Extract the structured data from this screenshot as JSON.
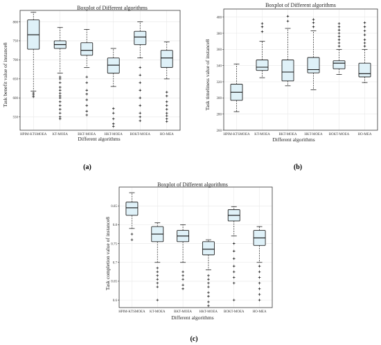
{
  "colors": {
    "box_fill": "#dff1f8",
    "median": "#111111",
    "outlier": "#222222",
    "grid": "#e6e6e6"
  },
  "chart_data": [
    {
      "type": "boxplot",
      "panel_label": "(a)",
      "title": "Boxplot of Different algorithms",
      "xlabel": "Different algorithms",
      "ylabel": "Task benefit value of instance8",
      "ylim": [
        515,
        830
      ],
      "yticks": [
        550,
        600,
        650,
        700,
        750,
        800
      ],
      "grid": true,
      "categories": [
        "HPIM-KTSMOEA",
        "KT-MOEA",
        "BKT-MOEA",
        "HKT-MOEA",
        "BOKT-MOEA",
        "HO-MEA"
      ],
      "boxes": [
        {
          "whisker_low": 618,
          "q1": 728,
          "median": 766,
          "q3": 805,
          "whisker_high": 825,
          "outliers": [
            603,
            608,
            613
          ]
        },
        {
          "whisker_low": 665,
          "q1": 730,
          "median": 740,
          "q3": 750,
          "whisker_high": 785,
          "outliers": [
            545,
            550,
            560,
            570,
            580,
            590,
            600,
            605,
            612,
            620,
            628,
            640,
            650,
            655
          ]
        },
        {
          "whisker_low": 680,
          "q1": 712,
          "median": 725,
          "q3": 745,
          "whisker_high": 780,
          "outliers": [
            555,
            565,
            580,
            595,
            610,
            620,
            640,
            655
          ]
        },
        {
          "whisker_low": 630,
          "q1": 665,
          "median": 686,
          "q3": 705,
          "whisker_high": 730,
          "outliers": [
            525,
            532,
            545,
            560,
            572
          ]
        },
        {
          "whisker_low": 705,
          "q1": 740,
          "median": 760,
          "q3": 775,
          "whisker_high": 800,
          "outliers": [
            540,
            550,
            560,
            580,
            600,
            620,
            640,
            660,
            680
          ]
        },
        {
          "whisker_low": 650,
          "q1": 680,
          "median": 705,
          "q3": 725,
          "whisker_high": 747,
          "outliers": [
            538,
            545,
            553,
            560,
            570,
            580,
            590,
            605,
            615
          ]
        }
      ]
    },
    {
      "type": "boxplot",
      "panel_label": "(b)",
      "title": "Boxplot of Different algorithms",
      "xlabel": "Different algorithms",
      "ylabel": "Task timeliness value of instance8",
      "ylim": [
        260,
        410
      ],
      "yticks": [
        260,
        280,
        300,
        320,
        340,
        360,
        380,
        400
      ],
      "grid": true,
      "categories": [
        "HPIM-KTSMOEA",
        "KT-MOEA",
        "BKT-MOEA",
        "HKT-MOEA",
        "BOKT-MOEA",
        "HO-MEA"
      ],
      "boxes": [
        {
          "whisker_low": 283,
          "q1": 297,
          "median": 307,
          "q3": 317,
          "whisker_high": 342,
          "outliers": []
        },
        {
          "whisker_low": 325,
          "q1": 334,
          "median": 338,
          "q3": 347,
          "whisker_high": 370,
          "outliers": [
            382,
            388,
            392
          ]
        },
        {
          "whisker_low": 315,
          "q1": 321,
          "median": 332,
          "q3": 347,
          "whisker_high": 386,
          "outliers": [
            395,
            401
          ]
        },
        {
          "whisker_low": 310,
          "q1": 331,
          "median": 335,
          "q3": 350,
          "whisker_high": 383,
          "outliers": [
            388,
            393,
            397
          ]
        },
        {
          "whisker_low": 329,
          "q1": 336,
          "median": 343,
          "q3": 346,
          "whisker_high": 360,
          "outliers": [
            364,
            368,
            372,
            376,
            380,
            384,
            388,
            392
          ]
        },
        {
          "whisker_low": 319,
          "q1": 326,
          "median": 330,
          "q3": 343,
          "whisker_high": 360,
          "outliers": [
            364,
            368,
            372,
            378,
            383,
            388,
            393
          ]
        }
      ]
    },
    {
      "type": "boxplot",
      "panel_label": "(c)",
      "title": "Boxplot of Different algorithms",
      "xlabel": "Different algorithms",
      "ylabel": "Task completion value of instance8",
      "ylim": [
        0.58,
        0.9
      ],
      "yticks": [
        0.6,
        0.65,
        0.7,
        0.75,
        0.8,
        0.85
      ],
      "grid": true,
      "categories": [
        "HPIM-KTSMOEA",
        "KT-MOEA",
        "BKT-MOEA",
        "HKT-MOEA",
        "BOKT-MOEA",
        "HO-MEA"
      ],
      "boxes": [
        {
          "whisker_low": 0.79,
          "q1": 0.825,
          "median": 0.845,
          "q3": 0.86,
          "whisker_high": 0.885,
          "outliers": [
            0.76,
            0.775
          ]
        },
        {
          "whisker_low": 0.7,
          "q1": 0.755,
          "median": 0.775,
          "q3": 0.795,
          "whisker_high": 0.805,
          "outliers": [
            0.6,
            0.635,
            0.645,
            0.655,
            0.665,
            0.675,
            0.685
          ]
        },
        {
          "whisker_low": 0.7,
          "q1": 0.755,
          "median": 0.77,
          "q3": 0.785,
          "whisker_high": 0.8,
          "outliers": [
            0.63,
            0.64,
            0.655,
            0.665,
            0.675
          ]
        },
        {
          "whisker_low": 0.68,
          "q1": 0.72,
          "median": 0.735,
          "q3": 0.755,
          "whisker_high": 0.76,
          "outliers": [
            0.585,
            0.595,
            0.61,
            0.62,
            0.635,
            0.645,
            0.655,
            0.665
          ]
        },
        {
          "whisker_low": 0.77,
          "q1": 0.81,
          "median": 0.825,
          "q3": 0.84,
          "whisker_high": 0.848,
          "outliers": [
            0.6,
            0.645,
            0.66,
            0.675,
            0.69,
            0.71,
            0.73,
            0.75
          ]
        },
        {
          "whisker_low": 0.7,
          "q1": 0.745,
          "median": 0.765,
          "q3": 0.785,
          "whisker_high": 0.795,
          "outliers": [
            0.6,
            0.615,
            0.63,
            0.645,
            0.66,
            0.675,
            0.69
          ]
        }
      ]
    }
  ]
}
